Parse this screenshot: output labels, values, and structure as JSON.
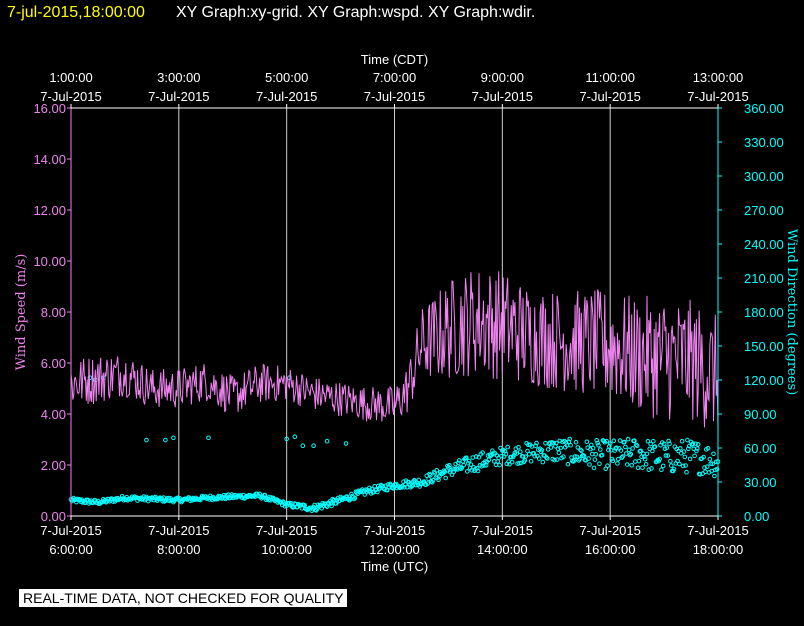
{
  "header": {
    "timestamp": "7-jul-2015,18:00:00",
    "titles": "XY Graph:xy-grid.  XY Graph:wspd.  XY Graph:wdir."
  },
  "disclaimer": "REAL-TIME DATA, NOT CHECKED FOR QUALITY",
  "colors": {
    "speed": "#ee82ee",
    "direction": "#00ffff",
    "grid": "#d0d0d0",
    "background": "#000000"
  },
  "chart_data": {
    "type": "line",
    "x_range_utc_hours": [
      6,
      18
    ],
    "top_axis": {
      "label": "Time (CDT)",
      "ticks": [
        {
          "x": 7,
          "time": "1:00:00",
          "date": "7-Jul-2015"
        },
        {
          "x": 9,
          "time": "3:00:00",
          "date": "7-Jul-2015"
        },
        {
          "x": 11,
          "time": "5:00:00",
          "date": "7-Jul-2015"
        },
        {
          "x": 13,
          "time": "7:00:00",
          "date": "7-Jul-2015"
        },
        {
          "x": 15,
          "time": "9:00:00",
          "date": "7-Jul-2015"
        },
        {
          "x": 17,
          "time": "11:00:00",
          "date": "7-Jul-2015"
        },
        {
          "x": 19,
          "time": "13:00:00",
          "date": "7-Jul-2015"
        }
      ]
    },
    "bottom_axis": {
      "label": "Time (UTC)",
      "ticks": [
        {
          "x": 6,
          "date": "7-Jul-2015",
          "time": "6:00:00"
        },
        {
          "x": 8,
          "date": "7-Jul-2015",
          "time": "8:00:00"
        },
        {
          "x": 10,
          "date": "7-Jul-2015",
          "time": "10:00:00"
        },
        {
          "x": 12,
          "date": "7-Jul-2015",
          "time": "12:00:00"
        },
        {
          "x": 14,
          "date": "7-Jul-2015",
          "time": "14:00:00"
        },
        {
          "x": 16,
          "date": "7-Jul-2015",
          "time": "16:00:00"
        },
        {
          "x": 18,
          "date": "7-Jul-2015",
          "time": "18:00:00"
        }
      ]
    },
    "left_axis": {
      "label": "Wind Speed (m/s)",
      "ylim": [
        0,
        16
      ],
      "ticks": [
        "0.00",
        "2.00",
        "4.00",
        "6.00",
        "8.00",
        "10.00",
        "12.00",
        "14.00",
        "16.00"
      ]
    },
    "right_axis": {
      "label": "Wind Direction (degrees)",
      "ylim": [
        0,
        360
      ],
      "ticks": [
        "0.00",
        "30.00",
        "60.00",
        "90.00",
        "120.00",
        "150.00",
        "180.00",
        "210.00",
        "240.00",
        "270.00",
        "300.00",
        "330.00",
        "360.00"
      ]
    },
    "vertical_grid_x": [
      8,
      10,
      12,
      14,
      16,
      18
    ],
    "series": [
      {
        "name": "Wind Speed",
        "axis": "left",
        "style": "line",
        "x": [
          6.0,
          6.5,
          7.0,
          7.5,
          8.0,
          8.5,
          9.0,
          9.5,
          10.0,
          10.5,
          11.0,
          11.5,
          12.0,
          12.25,
          12.5,
          13.0,
          13.5,
          14.0,
          14.5,
          15.0,
          15.5,
          16.0,
          16.5,
          17.0,
          17.5,
          18.0
        ],
        "values": [
          5.2,
          5.4,
          5.6,
          5.0,
          5.0,
          5.3,
          4.7,
          5.2,
          5.2,
          4.8,
          4.6,
          4.4,
          4.3,
          5.0,
          6.7,
          7.3,
          7.7,
          7.5,
          7.1,
          6.9,
          6.8,
          6.7,
          6.3,
          6.2,
          6.1,
          5.5
        ],
        "spread": [
          1.0,
          1.0,
          0.9,
          0.8,
          0.8,
          0.8,
          0.8,
          0.8,
          0.7,
          0.7,
          0.7,
          0.7,
          0.8,
          1.0,
          1.5,
          2.0,
          2.2,
          2.2,
          2.0,
          2.0,
          2.1,
          2.2,
          2.3,
          2.5,
          2.4,
          2.4
        ]
      },
      {
        "name": "Wind Direction",
        "axis": "right",
        "style": "markers",
        "x": [
          6.0,
          6.5,
          7.0,
          7.5,
          8.0,
          8.5,
          9.0,
          9.5,
          10.0,
          10.5,
          11.0,
          11.5,
          12.0,
          12.5,
          13.0,
          13.5,
          14.0,
          14.5,
          15.0,
          15.5,
          16.0,
          16.5,
          17.0,
          17.5,
          18.0
        ],
        "values": [
          14,
          12,
          16,
          15,
          14,
          16,
          17,
          18,
          10,
          7,
          14,
          22,
          27,
          30,
          40,
          47,
          53,
          56,
          58,
          55,
          54,
          55,
          52,
          53,
          48
        ],
        "spread": [
          2,
          2,
          2,
          2,
          2,
          2,
          2,
          2,
          2,
          3,
          3,
          3,
          3,
          4,
          6,
          8,
          8,
          9,
          11,
          12,
          13,
          14,
          15,
          15,
          14
        ]
      }
    ],
    "direction_outliers": {
      "x": [
        6.35,
        6.45,
        6.6,
        7.4,
        7.75,
        7.9,
        8.55,
        10.0,
        10.05,
        10.15,
        10.3,
        10.5,
        10.75,
        11.1
      ],
      "values": [
        122,
        120,
        122,
        67,
        67,
        69,
        69,
        68,
        122,
        70,
        62,
        62,
        66,
        64
      ]
    }
  }
}
